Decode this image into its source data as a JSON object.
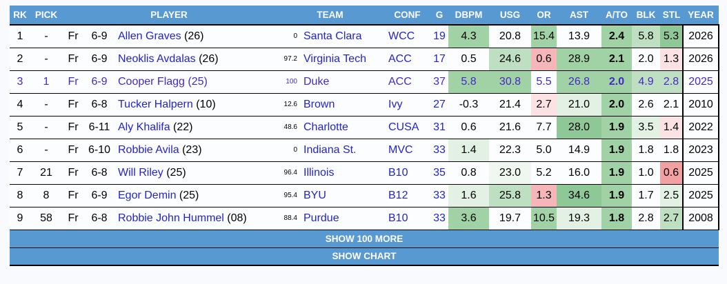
{
  "page": {
    "bg": "#f8fafd"
  },
  "table": {
    "header": {
      "bg": "#5999d2",
      "text_color": "#ffffff",
      "columns": [
        "RK",
        "PICK",
        "PLAYER",
        "TEAM",
        "CONF",
        "G",
        "DBPM",
        "USG",
        "OR",
        "AST",
        "A/TO",
        "BLK",
        "STL",
        "YEAR"
      ]
    },
    "colors": {
      "text": "#000000",
      "link": "#2323cc",
      "highlight_text": "#4428c8",
      "row_bg": "#fcfdff",
      "shades": {
        "w": "transparent",
        "g0": "#f0f7f1",
        "g1": "#e3f1e4",
        "g2": "#bedfc2",
        "g3": "#a0d2a5",
        "g4": "#8ec896",
        "r1": "#fbe3e5",
        "r2": "#f5b5b9",
        "r3": "#f3a0a3"
      }
    },
    "rows": [
      {
        "rk": "1",
        "pick": "-",
        "cls": "Fr",
        "ht": "6-9",
        "name": "Allen Graves",
        "num": "(26)",
        "pct": "0",
        "team": "Santa Clara",
        "conf": "WCC",
        "g": "19",
        "year": "2026",
        "highlight": false,
        "stats": {
          "dbpm": {
            "v": "4.3",
            "s": "g3"
          },
          "usg": {
            "v": "20.8",
            "s": "w"
          },
          "or": {
            "v": "15.4",
            "s": "g3"
          },
          "ast": {
            "v": "13.9",
            "s": "w"
          },
          "ato": {
            "v": "2.4",
            "s": "g3"
          },
          "blk": {
            "v": "5.8",
            "s": "g2"
          },
          "stl": {
            "v": "5.3",
            "s": "g4"
          }
        }
      },
      {
        "rk": "2",
        "pick": "-",
        "cls": "Fr",
        "ht": "6-9",
        "name": "Neoklis Avdalas",
        "num": "(26)",
        "pct": "97.2",
        "team": "Virginia Tech",
        "conf": "ACC",
        "g": "17",
        "year": "2026",
        "highlight": false,
        "stats": {
          "dbpm": {
            "v": "0.5",
            "s": "w"
          },
          "usg": {
            "v": "24.6",
            "s": "g2"
          },
          "or": {
            "v": "0.6",
            "s": "r2"
          },
          "ast": {
            "v": "28.9",
            "s": "g3"
          },
          "ato": {
            "v": "2.1",
            "s": "g3"
          },
          "blk": {
            "v": "2.0",
            "s": "w"
          },
          "stl": {
            "v": "1.3",
            "s": "r1"
          }
        }
      },
      {
        "rk": "3",
        "pick": "1",
        "cls": "Fr",
        "ht": "6-9",
        "name": "Cooper Flagg",
        "num": "(25)",
        "pct": "100",
        "team": "Duke",
        "conf": "ACC",
        "g": "37",
        "year": "2025",
        "highlight": true,
        "stats": {
          "dbpm": {
            "v": "5.8",
            "s": "g3"
          },
          "usg": {
            "v": "30.8",
            "s": "g3"
          },
          "or": {
            "v": "5.5",
            "s": "w"
          },
          "ast": {
            "v": "26.8",
            "s": "g3"
          },
          "ato": {
            "v": "2.0",
            "s": "g3"
          },
          "blk": {
            "v": "4.9",
            "s": "g2"
          },
          "stl": {
            "v": "2.8",
            "s": "g2"
          }
        }
      },
      {
        "rk": "4",
        "pick": "-",
        "cls": "Fr",
        "ht": "6-8",
        "name": "Tucker Halpern",
        "num": "(10)",
        "pct": "12.6",
        "team": "Brown",
        "conf": "Ivy",
        "g": "27",
        "year": "2010",
        "highlight": false,
        "stats": {
          "dbpm": {
            "v": "-0.3",
            "s": "w"
          },
          "usg": {
            "v": "21.4",
            "s": "w"
          },
          "or": {
            "v": "2.7",
            "s": "r1"
          },
          "ast": {
            "v": "21.0",
            "s": "g1"
          },
          "ato": {
            "v": "2.0",
            "s": "g3"
          },
          "blk": {
            "v": "2.6",
            "s": "w"
          },
          "stl": {
            "v": "2.1",
            "s": "w"
          }
        }
      },
      {
        "rk": "5",
        "pick": "-",
        "cls": "Fr",
        "ht": "6-11",
        "name": "Aly Khalifa",
        "num": "(22)",
        "pct": "48.6",
        "team": "Charlotte",
        "conf": "CUSA",
        "g": "31",
        "year": "2022",
        "highlight": false,
        "stats": {
          "dbpm": {
            "v": "0.6",
            "s": "w"
          },
          "usg": {
            "v": "21.6",
            "s": "w"
          },
          "or": {
            "v": "7.7",
            "s": "w"
          },
          "ast": {
            "v": "28.0",
            "s": "g4"
          },
          "ato": {
            "v": "1.9",
            "s": "g3"
          },
          "blk": {
            "v": "3.5",
            "s": "g1"
          },
          "stl": {
            "v": "1.4",
            "s": "r1"
          }
        }
      },
      {
        "rk": "6",
        "pick": "-",
        "cls": "Fr",
        "ht": "6-10",
        "name": "Robbie Avila",
        "num": "(23)",
        "pct": "0",
        "team": "Indiana St.",
        "conf": "MVC",
        "g": "33",
        "year": "2023",
        "highlight": false,
        "stats": {
          "dbpm": {
            "v": "1.4",
            "s": "g1"
          },
          "usg": {
            "v": "22.3",
            "s": "w"
          },
          "or": {
            "v": "5.0",
            "s": "w"
          },
          "ast": {
            "v": "14.9",
            "s": "w"
          },
          "ato": {
            "v": "1.9",
            "s": "g3"
          },
          "blk": {
            "v": "1.8",
            "s": "w"
          },
          "stl": {
            "v": "1.8",
            "s": "w"
          }
        }
      },
      {
        "rk": "7",
        "pick": "21",
        "cls": "Fr",
        "ht": "6-8",
        "name": "Will Riley",
        "num": "(25)",
        "pct": "96.4",
        "team": "Illinois",
        "conf": "B10",
        "g": "35",
        "year": "2025",
        "highlight": false,
        "stats": {
          "dbpm": {
            "v": "0.8",
            "s": "w"
          },
          "usg": {
            "v": "23.0",
            "s": "g0"
          },
          "or": {
            "v": "5.2",
            "s": "w"
          },
          "ast": {
            "v": "16.0",
            "s": "w"
          },
          "ato": {
            "v": "1.9",
            "s": "g3"
          },
          "blk": {
            "v": "1.0",
            "s": "w"
          },
          "stl": {
            "v": "0.6",
            "s": "r3"
          }
        }
      },
      {
        "rk": "8",
        "pick": "8",
        "cls": "Fr",
        "ht": "6-9",
        "name": "Egor Demin",
        "num": "(25)",
        "pct": "95.4",
        "team": "BYU",
        "conf": "B12",
        "g": "33",
        "year": "2025",
        "highlight": false,
        "stats": {
          "dbpm": {
            "v": "1.6",
            "s": "g1"
          },
          "usg": {
            "v": "25.8",
            "s": "g2"
          },
          "or": {
            "v": "1.3",
            "s": "r2"
          },
          "ast": {
            "v": "34.6",
            "s": "g4"
          },
          "ato": {
            "v": "1.9",
            "s": "g3"
          },
          "blk": {
            "v": "1.7",
            "s": "w"
          },
          "stl": {
            "v": "2.5",
            "s": "g1"
          }
        }
      },
      {
        "rk": "9",
        "pick": "58",
        "cls": "Fr",
        "ht": "6-8",
        "name": "Robbie John Hummel",
        "num": "(08)",
        "pct": "88.4",
        "team": "Purdue",
        "conf": "B10",
        "g": "33",
        "year": "2008",
        "highlight": false,
        "stats": {
          "dbpm": {
            "v": "3.6",
            "s": "g3"
          },
          "usg": {
            "v": "19.7",
            "s": "w"
          },
          "or": {
            "v": "10.5",
            "s": "g3"
          },
          "ast": {
            "v": "19.3",
            "s": "g1"
          },
          "ato": {
            "v": "1.8",
            "s": "g3"
          },
          "blk": {
            "v": "2.8",
            "s": "w"
          },
          "stl": {
            "v": "2.7",
            "s": "g2"
          }
        }
      }
    ],
    "footer_buttons": [
      {
        "label": "SHOW 100 MORE"
      },
      {
        "label": "SHOW CHART"
      }
    ]
  }
}
